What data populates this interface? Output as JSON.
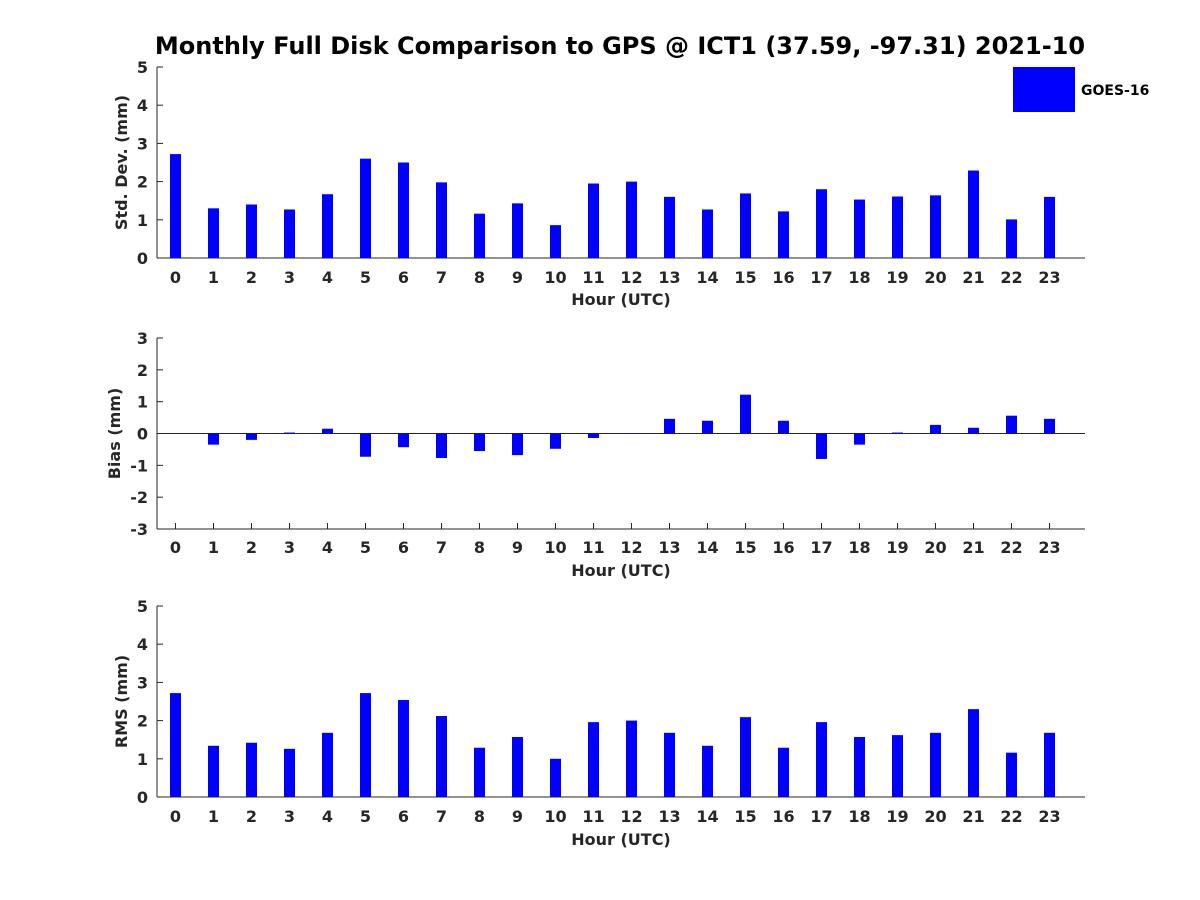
{
  "chart_data": {
    "title": "Monthly Full Disk Comparison to GPS @ ICT1 (37.59, -97.31) 2021-10",
    "legend": {
      "label": "GOES-16",
      "color": "#0000ff",
      "placement": "top-right"
    },
    "bar_color": "#0000ff",
    "panels": [
      {
        "type": "bar",
        "categories": [
          "0",
          "1",
          "2",
          "3",
          "4",
          "5",
          "6",
          "7",
          "8",
          "9",
          "10",
          "11",
          "12",
          "13",
          "14",
          "15",
          "16",
          "17",
          "18",
          "19",
          "20",
          "21",
          "22",
          "23"
        ],
        "values": [
          2.72,
          1.3,
          1.4,
          1.27,
          1.67,
          2.6,
          2.5,
          1.98,
          1.16,
          1.43,
          0.86,
          1.95,
          2.0,
          1.6,
          1.27,
          1.69,
          1.22,
          1.8,
          1.53,
          1.61,
          1.64,
          2.29,
          1.01,
          1.6
        ],
        "xlabel": "Hour (UTC)",
        "ylabel": "Std. Dev. (mm)",
        "ylim": [
          0,
          5
        ],
        "yticks": [
          "0",
          "1",
          "2",
          "3",
          "4",
          "5"
        ],
        "grid": false
      },
      {
        "type": "bar",
        "categories": [
          "0",
          "1",
          "2",
          "3",
          "4",
          "5",
          "6",
          "7",
          "8",
          "9",
          "10",
          "11",
          "12",
          "13",
          "14",
          "15",
          "16",
          "17",
          "18",
          "19",
          "20",
          "21",
          "22",
          "23"
        ],
        "values": [
          0.0,
          -0.35,
          -0.2,
          0.03,
          0.15,
          -0.73,
          -0.43,
          -0.77,
          -0.55,
          -0.68,
          -0.48,
          -0.14,
          0.01,
          0.46,
          0.4,
          1.22,
          0.4,
          -0.8,
          -0.35,
          0.03,
          0.27,
          0.18,
          0.56,
          0.46
        ],
        "xlabel": "Hour (UTC)",
        "ylabel": "Bias (mm)",
        "ylim": [
          -3,
          3
        ],
        "yticks": [
          "-3",
          "-2",
          "-1",
          "0",
          "1",
          "2",
          "3"
        ],
        "grid": false
      },
      {
        "type": "bar",
        "categories": [
          "0",
          "1",
          "2",
          "3",
          "4",
          "5",
          "6",
          "7",
          "8",
          "9",
          "10",
          "11",
          "12",
          "13",
          "14",
          "15",
          "16",
          "17",
          "18",
          "19",
          "20",
          "21",
          "22",
          "23"
        ],
        "values": [
          2.72,
          1.34,
          1.42,
          1.26,
          1.68,
          2.72,
          2.54,
          2.12,
          1.29,
          1.57,
          1.0,
          1.96,
          2.0,
          1.68,
          1.34,
          2.09,
          1.29,
          1.96,
          1.57,
          1.62,
          1.68,
          2.3,
          1.16,
          1.68
        ],
        "xlabel": "Hour (UTC)",
        "ylabel": "RMS (mm)",
        "ylim": [
          0,
          5
        ],
        "yticks": [
          "0",
          "1",
          "2",
          "3",
          "4",
          "5"
        ],
        "grid": false
      }
    ]
  }
}
